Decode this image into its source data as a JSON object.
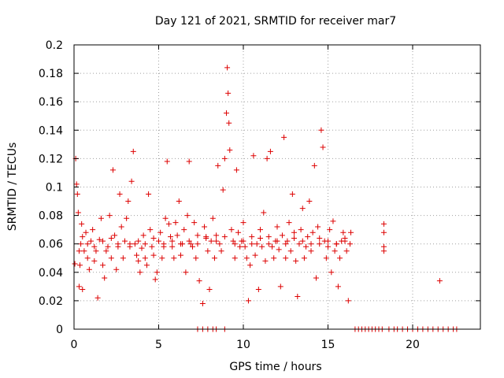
{
  "chart_data": {
    "type": "scatter",
    "title": "Day 121 of 2021, SRMTID for receiver mar7",
    "xlabel": "GPS time / hours",
    "ylabel": "SRMTID / TECUs",
    "xlim": [
      0,
      24
    ],
    "ylim": [
      0,
      0.2
    ],
    "x_ticks": [
      0,
      5,
      10,
      15,
      20
    ],
    "x_tick_labels": [
      "0",
      "5",
      "10",
      "15",
      "20"
    ],
    "y_ticks": [
      0,
      0.02,
      0.04,
      0.06,
      0.08,
      0.1,
      0.12,
      0.14,
      0.16,
      0.18,
      0.2
    ],
    "y_tick_labels": [
      "0",
      "0.02",
      "0.04",
      "0.06",
      "0.08",
      "0.1",
      "0.12",
      "0.14",
      "0.16",
      "0.18",
      "0.2"
    ],
    "grid": true,
    "marker": "plus",
    "series_color": "#dd0000",
    "series": [
      {
        "points": [
          [
            0.05,
            0.046
          ],
          [
            0.1,
            0.12
          ],
          [
            0.15,
            0.102
          ],
          [
            0.2,
            0.095
          ],
          [
            0.25,
            0.082
          ],
          [
            0.3,
            0.03
          ],
          [
            0.35,
            0.045
          ],
          [
            0.4,
            0.06
          ],
          [
            0.45,
            0.074
          ],
          [
            0.5,
            0.028
          ],
          [
            0.6,
            0.055
          ],
          [
            0.7,
            0.068
          ],
          [
            0.8,
            0.05
          ],
          [
            0.9,
            0.042
          ],
          [
            1.0,
            0.062
          ],
          [
            1.1,
            0.07
          ],
          [
            1.2,
            0.048
          ],
          [
            1.3,
            0.055
          ],
          [
            1.4,
            0.022
          ],
          [
            1.5,
            0.063
          ],
          [
            1.6,
            0.078
          ],
          [
            1.7,
            0.045
          ],
          [
            1.8,
            0.036
          ],
          [
            1.9,
            0.055
          ],
          [
            2.0,
            0.058
          ],
          [
            2.1,
            0.08
          ],
          [
            2.2,
            0.05
          ],
          [
            2.3,
            0.112
          ],
          [
            2.4,
            0.066
          ],
          [
            2.5,
            0.042
          ],
          [
            2.6,
            0.058
          ],
          [
            2.7,
            0.095
          ],
          [
            2.8,
            0.072
          ],
          [
            2.9,
            0.05
          ],
          [
            3.0,
            0.062
          ],
          [
            3.1,
            0.078
          ],
          [
            3.2,
            0.09
          ],
          [
            3.3,
            0.06
          ],
          [
            3.4,
            0.104
          ],
          [
            3.5,
            0.125
          ],
          [
            3.6,
            0.06
          ],
          [
            3.7,
            0.052
          ],
          [
            3.8,
            0.048
          ],
          [
            3.9,
            0.04
          ],
          [
            4.0,
            0.057
          ],
          [
            4.1,
            0.066
          ],
          [
            4.2,
            0.05
          ],
          [
            4.3,
            0.045
          ],
          [
            4.4,
            0.095
          ],
          [
            4.5,
            0.07
          ],
          [
            4.6,
            0.058
          ],
          [
            4.7,
            0.052
          ],
          [
            4.8,
            0.035
          ],
          [
            4.9,
            0.04
          ],
          [
            5.0,
            0.062
          ],
          [
            5.1,
            0.068
          ],
          [
            5.2,
            0.05
          ],
          [
            5.3,
            0.06
          ],
          [
            5.4,
            0.078
          ],
          [
            5.5,
            0.118
          ],
          [
            5.6,
            0.074
          ],
          [
            5.7,
            0.065
          ],
          [
            5.8,
            0.058
          ],
          [
            5.9,
            0.05
          ],
          [
            6.0,
            0.075
          ],
          [
            6.1,
            0.066
          ],
          [
            6.2,
            0.09
          ],
          [
            6.3,
            0.052
          ],
          [
            6.4,
            0.06
          ],
          [
            6.5,
            0.07
          ],
          [
            6.6,
            0.04
          ],
          [
            6.7,
            0.08
          ],
          [
            6.8,
            0.118
          ],
          [
            6.9,
            0.06
          ],
          [
            7.0,
            0.058
          ],
          [
            7.1,
            0.075
          ],
          [
            7.2,
            0.05
          ],
          [
            7.3,
            0.066
          ],
          [
            7.4,
            0.034
          ],
          [
            7.6,
            0.018
          ],
          [
            7.7,
            0.072
          ],
          [
            7.8,
            0.065
          ],
          [
            7.9,
            0.055
          ],
          [
            8.0,
            0.028
          ],
          [
            8.1,
            0.062
          ],
          [
            8.2,
            0.078
          ],
          [
            8.3,
            0.05
          ],
          [
            8.4,
            0.066
          ],
          [
            8.5,
            0.115
          ],
          [
            8.6,
            0.06
          ],
          [
            8.7,
            0.055
          ],
          [
            8.8,
            0.098
          ],
          [
            8.9,
            0.12
          ],
          [
            9.0,
            0.152
          ],
          [
            9.05,
            0.184
          ],
          [
            9.1,
            0.166
          ],
          [
            9.15,
            0.145
          ],
          [
            9.2,
            0.126
          ],
          [
            9.3,
            0.07
          ],
          [
            9.4,
            0.062
          ],
          [
            9.5,
            0.05
          ],
          [
            9.6,
            0.112
          ],
          [
            9.7,
            0.068
          ],
          [
            9.8,
            0.058
          ],
          [
            9.9,
            0.062
          ],
          [
            10.0,
            0.075
          ],
          [
            10.1,
            0.058
          ],
          [
            10.2,
            0.05
          ],
          [
            10.3,
            0.02
          ],
          [
            10.4,
            0.045
          ],
          [
            10.5,
            0.065
          ],
          [
            10.6,
            0.122
          ],
          [
            10.7,
            0.052
          ],
          [
            10.8,
            0.06
          ],
          [
            10.9,
            0.028
          ],
          [
            11.0,
            0.07
          ],
          [
            11.1,
            0.058
          ],
          [
            11.2,
            0.082
          ],
          [
            11.3,
            0.048
          ],
          [
            11.4,
            0.12
          ],
          [
            11.5,
            0.065
          ],
          [
            11.6,
            0.125
          ],
          [
            11.7,
            0.058
          ],
          [
            11.8,
            0.05
          ],
          [
            11.9,
            0.062
          ],
          [
            12.0,
            0.072
          ],
          [
            12.1,
            0.056
          ],
          [
            12.2,
            0.03
          ],
          [
            12.3,
            0.066
          ],
          [
            12.4,
            0.135
          ],
          [
            12.5,
            0.05
          ],
          [
            12.6,
            0.062
          ],
          [
            12.7,
            0.075
          ],
          [
            12.8,
            0.055
          ],
          [
            12.9,
            0.095
          ],
          [
            13.0,
            0.068
          ],
          [
            13.1,
            0.048
          ],
          [
            13.2,
            0.023
          ],
          [
            13.3,
            0.06
          ],
          [
            13.4,
            0.07
          ],
          [
            13.5,
            0.085
          ],
          [
            13.6,
            0.05
          ],
          [
            13.7,
            0.058
          ],
          [
            13.8,
            0.065
          ],
          [
            13.9,
            0.09
          ],
          [
            14.0,
            0.055
          ],
          [
            14.1,
            0.068
          ],
          [
            14.2,
            0.115
          ],
          [
            14.3,
            0.036
          ],
          [
            14.4,
            0.072
          ],
          [
            14.5,
            0.06
          ],
          [
            14.6,
            0.14
          ],
          [
            14.7,
            0.128
          ],
          [
            14.8,
            0.062
          ],
          [
            14.9,
            0.05
          ],
          [
            15.0,
            0.058
          ],
          [
            15.1,
            0.07
          ],
          [
            15.2,
            0.04
          ],
          [
            15.3,
            0.076
          ],
          [
            15.4,
            0.055
          ],
          [
            15.5,
            0.06
          ],
          [
            15.6,
            0.03
          ],
          [
            15.7,
            0.05
          ],
          [
            15.8,
            0.062
          ],
          [
            15.9,
            0.068
          ],
          [
            16.0,
            0.062
          ],
          [
            16.1,
            0.055
          ],
          [
            16.2,
            0.02
          ],
          [
            16.3,
            0.06
          ],
          [
            16.35,
            0.068
          ],
          [
            18.3,
            0.074
          ],
          [
            18.3,
            0.068
          ],
          [
            18.3,
            0.058
          ],
          [
            18.3,
            0.055
          ],
          [
            21.6,
            0.034
          ],
          [
            0.3,
            0.055
          ],
          [
            0.5,
            0.065
          ],
          [
            0.8,
            0.06
          ],
          [
            1.2,
            0.058
          ],
          [
            1.7,
            0.062
          ],
          [
            2.2,
            0.064
          ],
          [
            2.6,
            0.06
          ],
          [
            3.3,
            0.058
          ],
          [
            3.8,
            0.062
          ],
          [
            4.2,
            0.06
          ],
          [
            4.7,
            0.064
          ],
          [
            5.3,
            0.058
          ],
          [
            5.8,
            0.062
          ],
          [
            6.3,
            0.06
          ],
          [
            6.8,
            0.062
          ],
          [
            7.3,
            0.06
          ],
          [
            7.8,
            0.064
          ],
          [
            8.4,
            0.062
          ],
          [
            8.9,
            0.065
          ],
          [
            9.5,
            0.06
          ],
          [
            10.0,
            0.062
          ],
          [
            10.5,
            0.06
          ],
          [
            11.0,
            0.064
          ],
          [
            11.5,
            0.06
          ],
          [
            12.0,
            0.062
          ],
          [
            12.5,
            0.06
          ],
          [
            13.0,
            0.064
          ],
          [
            13.5,
            0.062
          ],
          [
            14.0,
            0.06
          ],
          [
            14.5,
            0.064
          ],
          [
            15.0,
            0.062
          ],
          [
            15.5,
            0.06
          ],
          [
            16.0,
            0.064
          ],
          [
            16.6,
            0
          ],
          [
            16.8,
            0
          ],
          [
            17.0,
            0
          ],
          [
            17.2,
            0
          ],
          [
            17.4,
            0
          ],
          [
            17.6,
            0
          ],
          [
            17.8,
            0
          ],
          [
            18.0,
            0
          ],
          [
            18.2,
            0
          ],
          [
            18.6,
            0
          ],
          [
            18.9,
            0
          ],
          [
            19.1,
            0
          ],
          [
            19.4,
            0
          ],
          [
            19.7,
            0
          ],
          [
            20.0,
            0
          ],
          [
            20.3,
            0
          ],
          [
            20.6,
            0
          ],
          [
            20.9,
            0
          ],
          [
            21.2,
            0
          ],
          [
            21.5,
            0
          ],
          [
            21.8,
            0
          ],
          [
            22.1,
            0
          ],
          [
            22.4,
            0
          ],
          [
            22.6,
            0
          ],
          [
            7.3,
            0
          ],
          [
            7.6,
            0
          ],
          [
            7.9,
            0
          ],
          [
            8.2,
            0
          ],
          [
            8.4,
            0
          ],
          [
            8.9,
            0
          ]
        ]
      }
    ]
  }
}
